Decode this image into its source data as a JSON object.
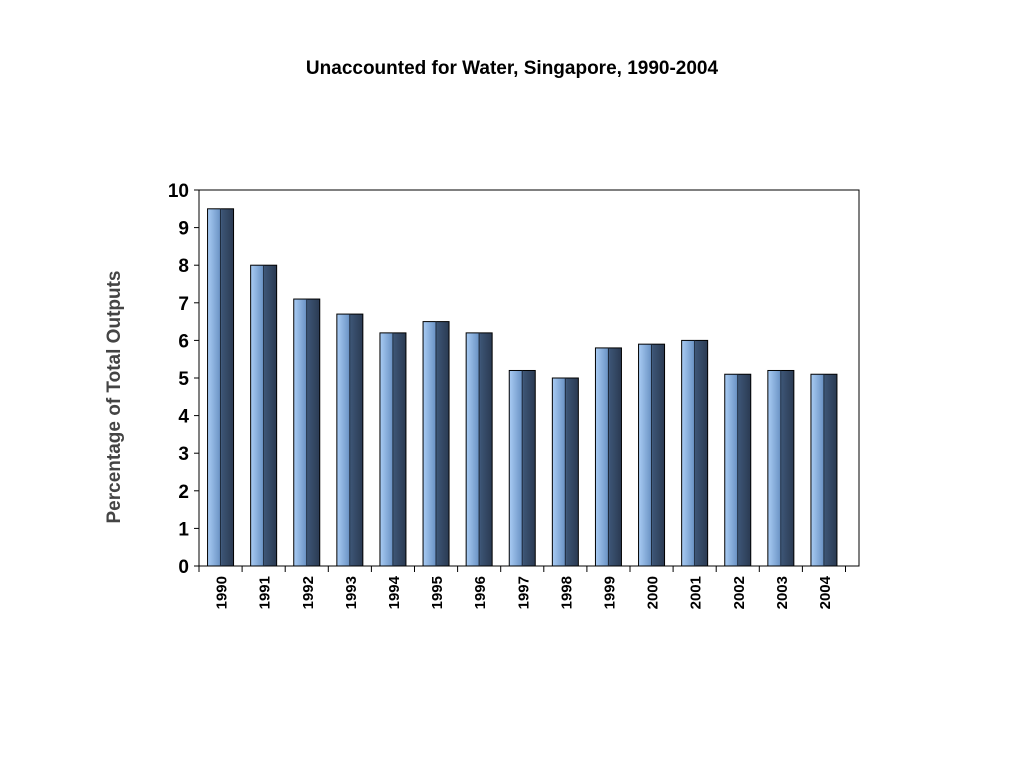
{
  "chart_data": {
    "type": "bar",
    "title": "Unaccounted for Water, Singapore, 1990-2004",
    "xlabel": "",
    "ylabel": "Percentage of Total Outputs",
    "categories": [
      "1990",
      "1991",
      "1992",
      "1993",
      "1994",
      "1995",
      "1996",
      "1997",
      "1998",
      "1999",
      "2000",
      "2001",
      "2002",
      "2003",
      "2004"
    ],
    "values": [
      9.5,
      8.0,
      7.1,
      6.7,
      6.2,
      6.5,
      6.2,
      5.2,
      5.0,
      5.8,
      5.9,
      6.0,
      5.1,
      5.2,
      5.1
    ],
    "ylim": [
      0,
      10
    ],
    "yticks": [
      0,
      1,
      2,
      3,
      4,
      5,
      6,
      7,
      8,
      9,
      10
    ],
    "grid": false,
    "legend": "none",
    "colors": {
      "bar_light": "#a9ccf4",
      "bar_dark": "#2a3a52",
      "outline": "#000000"
    }
  }
}
